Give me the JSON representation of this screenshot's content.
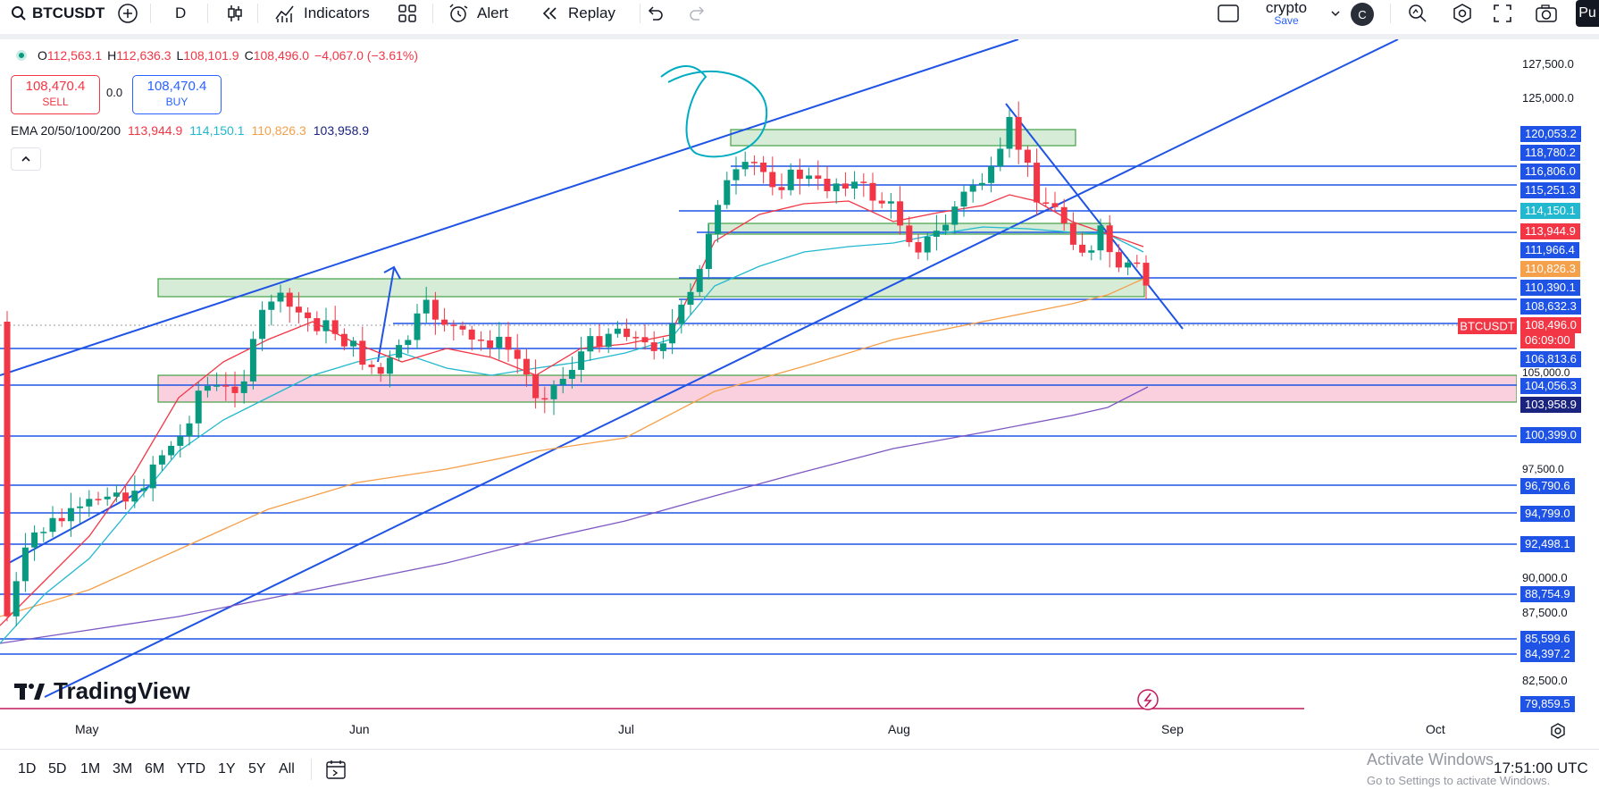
{
  "toolbar": {
    "symbol": "BTCUSDT",
    "interval": "D",
    "indicators_label": "Indicators",
    "alert_label": "Alert",
    "replay_label": "Replay",
    "layout_name": "crypto",
    "layout_sub": "Save",
    "avatar_letter": "C",
    "publish_label": "Pu",
    "icons": [
      "search-icon",
      "add-symbol-icon",
      "candles-icon",
      "indicators-icon",
      "templates-icon",
      "alert-icon",
      "replay-icon",
      "undo-icon",
      "redo-icon",
      "layout-icon",
      "quick-search-icon",
      "settings-icon",
      "fullscreen-icon",
      "camera-icon"
    ]
  },
  "legend": {
    "open_label": "O",
    "open": "112,563.1",
    "high_label": "H",
    "high": "112,636.3",
    "low_label": "L",
    "low": "108,101.9",
    "close_label": "C",
    "close": "108,496.0",
    "change": "−4,067.0 (−3.61%)"
  },
  "trade": {
    "sell_price": "108,470.4",
    "sell_label": "SELL",
    "spread": "0.0",
    "buy_price": "108,470.4",
    "buy_label": "BUY"
  },
  "ema": {
    "label": "EMA 20/50/100/200",
    "v20": "113,944.9",
    "v50": "114,150.1",
    "v100": "110,826.3",
    "v200": "103,958.9",
    "colors": {
      "ema20": "#f23645",
      "ema50": "#22b8cf",
      "ema100": "#f5a04a",
      "ema200": "#7e57c2"
    }
  },
  "price_scale": {
    "plain_labels": [
      "127,500.0",
      "125,000.0",
      "105,000.0",
      "97,500.0",
      "90,000.0",
      "87,500.0",
      "82,500.0"
    ],
    "tags": [
      {
        "text": "120,053.2",
        "color": "#1e53e5"
      },
      {
        "text": "118,780.2",
        "color": "#1e53e5"
      },
      {
        "text": "116,806.0",
        "color": "#1e53e5"
      },
      {
        "text": "115,251.3",
        "color": "#1e53e5"
      },
      {
        "text": "114,150.1",
        "color": "#22b8cf"
      },
      {
        "text": "113,944.9",
        "color": "#f23645"
      },
      {
        "text": "111,966.4",
        "color": "#1e53e5"
      },
      {
        "text": "110,826.3",
        "color": "#f5a04a"
      },
      {
        "text": "110,390.1",
        "color": "#1e53e5"
      },
      {
        "text": "108,632.3",
        "color": "#1e53e5"
      },
      {
        "text": "108,496.0",
        "color": "#f23645"
      },
      {
        "text": "106,813.6",
        "color": "#1e53e5"
      },
      {
        "text": "104,056.3",
        "color": "#1e53e5"
      },
      {
        "text": "103,958.9",
        "color": "#1a237e"
      },
      {
        "text": "100,399.0",
        "color": "#1e53e5"
      },
      {
        "text": "96,790.6",
        "color": "#1e53e5"
      },
      {
        "text": "94,799.0",
        "color": "#1e53e5"
      },
      {
        "text": "92,498.1",
        "color": "#1e53e5"
      },
      {
        "text": "88,754.9",
        "color": "#1e53e5"
      },
      {
        "text": "85,599.6",
        "color": "#1e53e5"
      },
      {
        "text": "84,397.2",
        "color": "#1e53e5"
      },
      {
        "text": "79,859.5",
        "color": "#1e53e5"
      }
    ],
    "countdown": "06:09:00",
    "symbol_tag": "BTCUSDT"
  },
  "time_axis": {
    "labels": [
      "May",
      "Jun",
      "Jul",
      "Aug",
      "Sep",
      "Oct"
    ]
  },
  "bottom_bar": {
    "ranges": [
      "1D",
      "5D",
      "1M",
      "3M",
      "6M",
      "YTD",
      "1Y",
      "5Y",
      "All"
    ],
    "clock": "17:51:00 UTC",
    "watermark": "Activate Windows",
    "watermark_sub": "Go to Settings to activate Windows."
  },
  "brand": "TradingView"
}
